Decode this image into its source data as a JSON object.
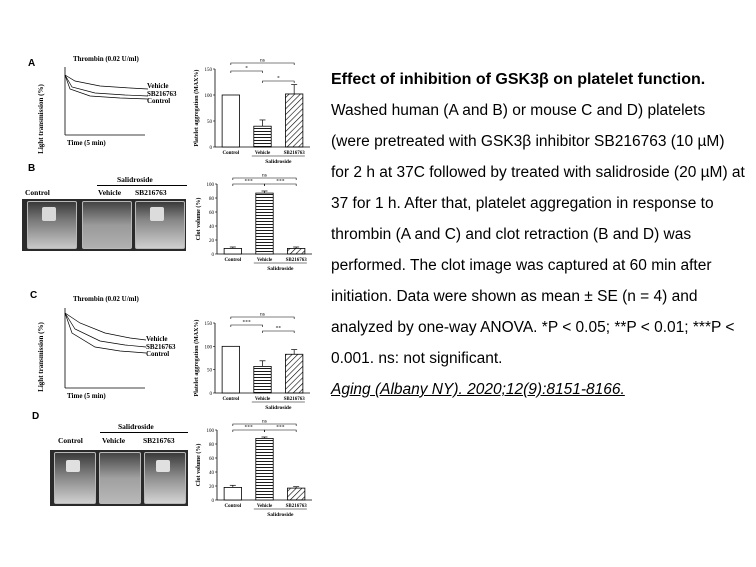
{
  "caption": {
    "title": "Effect of inhibition of GSK3β on platelet function.",
    "body": "Washed human (A and B) or mouse C and D) platelets (were pretreated with GSK3β inhibitor SB216763 (10 µM) for 2 h at 37C followed by treated with salidroside (20 µM) at 37 for 1 h. After that, platelet aggregation in response to thrombin (A and C) and clot retraction (B and D) was performed. The clot image was captured at 60 min after initiation. Data were shown as mean ± SE (n = 4) and analyzed by one-way ANOVA. *P < 0.05; **P < 0.01; ***P < 0.001. ns: not significant.",
    "citation": "Aging (Albany NY). 2020;12(9):8151-8166."
  },
  "figure": {
    "panels": {
      "A": "A",
      "B": "B",
      "C": "C",
      "D": "D"
    },
    "tracing": {
      "thrombin_label": "Thrombin (0.02 U/ml)",
      "y_label": "Light transmission (%)",
      "x_label": "Time (5 min)",
      "legend": [
        "Vehicle",
        "SB216763",
        "Control"
      ]
    },
    "clot": {
      "group_label": "Salidroside",
      "vial_labels": [
        "Control",
        "Vehicle",
        "SB216763"
      ]
    },
    "ns_label": "ns"
  },
  "chart_data": [
    {
      "type": "bar",
      "panel": "A",
      "ylabel": "Platelet aggregation (MAX%)",
      "categories": [
        "Control",
        "Vehicle",
        "SB216763"
      ],
      "group_label": "Salidroside",
      "values": [
        100,
        40,
        102
      ],
      "errors": [
        0,
        12,
        18
      ],
      "ylim": [
        0,
        150
      ],
      "yticks": [
        0,
        50,
        100,
        150
      ],
      "significance": [
        {
          "from": 0,
          "to": 2,
          "label": "ns"
        },
        {
          "from": 0,
          "to": 1,
          "label": "*"
        },
        {
          "from": 1,
          "to": 2,
          "label": "*"
        }
      ]
    },
    {
      "type": "bar",
      "panel": "B",
      "ylabel": "Clot volume (%)",
      "categories": [
        "Control",
        "Vehicle",
        "SB216763"
      ],
      "group_label": "Salidroside",
      "values": [
        8,
        87,
        8
      ],
      "errors": [
        2,
        3,
        2
      ],
      "ylim": [
        0,
        100
      ],
      "yticks": [
        0,
        20,
        40,
        60,
        80,
        100
      ],
      "significance": [
        {
          "from": 0,
          "to": 2,
          "label": "ns"
        },
        {
          "from": 0,
          "to": 1,
          "label": "***"
        },
        {
          "from": 1,
          "to": 2,
          "label": "***"
        }
      ]
    },
    {
      "type": "bar",
      "panel": "C",
      "ylabel": "Platelet aggregation (MAX%)",
      "categories": [
        "Control",
        "Vehicle",
        "SB216763"
      ],
      "group_label": "Salidroside",
      "values": [
        100,
        57,
        83
      ],
      "errors": [
        0,
        12,
        10
      ],
      "ylim": [
        0,
        150
      ],
      "yticks": [
        0,
        50,
        100,
        150
      ],
      "significance": [
        {
          "from": 0,
          "to": 2,
          "label": "ns"
        },
        {
          "from": 0,
          "to": 1,
          "label": "***"
        },
        {
          "from": 1,
          "to": 2,
          "label": "**"
        }
      ]
    },
    {
      "type": "bar",
      "panel": "D",
      "ylabel": "Clot volume (%)",
      "categories": [
        "Control",
        "Vehicle",
        "SB216763"
      ],
      "group_label": "Salidroside",
      "values": [
        18,
        88,
        17
      ],
      "errors": [
        3,
        2,
        2
      ],
      "ylim": [
        0,
        100
      ],
      "yticks": [
        0,
        20,
        40,
        60,
        80,
        100
      ],
      "significance": [
        {
          "from": 0,
          "to": 2,
          "label": "ns"
        },
        {
          "from": 0,
          "to": 1,
          "label": "***"
        },
        {
          "from": 1,
          "to": 2,
          "label": "***"
        }
      ]
    }
  ]
}
